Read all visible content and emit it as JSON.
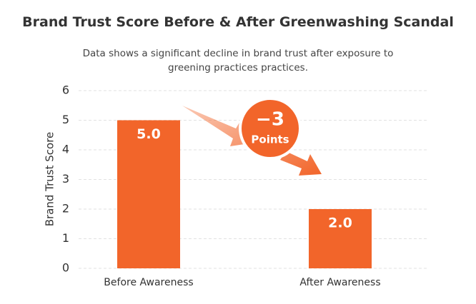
{
  "chart_data": {
    "type": "bar",
    "title": "Brand Trust Score Before & After Greenwashing Scandal",
    "subtitle": "Data shows a significant decline in brand trust after exposure to greening practices practices.",
    "y_label": "Brand Trust Score",
    "categories": [
      "Before Awareness",
      "After Awareness"
    ],
    "values": [
      5,
      2
    ],
    "value_labels": [
      "5.0",
      "2.0"
    ],
    "color": "#f2652a",
    "ylim": [
      0,
      6
    ],
    "yticks": [
      0,
      1,
      2,
      3,
      4,
      5,
      6
    ],
    "grid": true,
    "annotation": {
      "value": "−3",
      "unit": "Points"
    }
  }
}
